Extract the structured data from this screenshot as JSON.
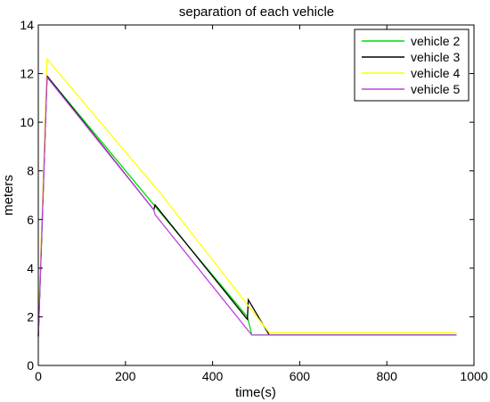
{
  "chart_data": {
    "type": "line",
    "title": "separation of each vehicle",
    "xlabel": "time(s)",
    "ylabel": "meters",
    "xlim": [
      0,
      1000
    ],
    "ylim": [
      0,
      14
    ],
    "xticks": [
      0,
      200,
      400,
      600,
      800,
      1000
    ],
    "yticks": [
      0,
      2,
      4,
      6,
      8,
      10,
      12,
      14
    ],
    "grid": false,
    "legend_position": "top-right",
    "series": [
      {
        "name": "vehicle 2",
        "color": "#00dd00",
        "x": [
          0,
          20,
          270,
          480,
          490,
          530,
          960
        ],
        "y": [
          1.2,
          11.9,
          6.5,
          2.0,
          1.25,
          1.25,
          1.25
        ]
      },
      {
        "name": "vehicle 3",
        "color": "#000000",
        "x": [
          0,
          20,
          265,
          268,
          475,
          480,
          482,
          530,
          960
        ],
        "y": [
          1.2,
          11.9,
          6.4,
          6.6,
          2.0,
          1.9,
          2.7,
          1.25,
          1.25
        ]
      },
      {
        "name": "vehicle 4",
        "color": "#ffff00",
        "x": [
          0,
          20,
          265,
          275,
          530,
          960
        ],
        "y": [
          1.4,
          12.6,
          7.4,
          7.2,
          1.35,
          1.35
        ]
      },
      {
        "name": "vehicle 5",
        "color": "#bb44dd",
        "x": [
          0,
          20,
          265,
          268,
          490,
          960
        ],
        "y": [
          1.2,
          11.85,
          6.4,
          6.2,
          1.25,
          1.25
        ]
      }
    ]
  }
}
